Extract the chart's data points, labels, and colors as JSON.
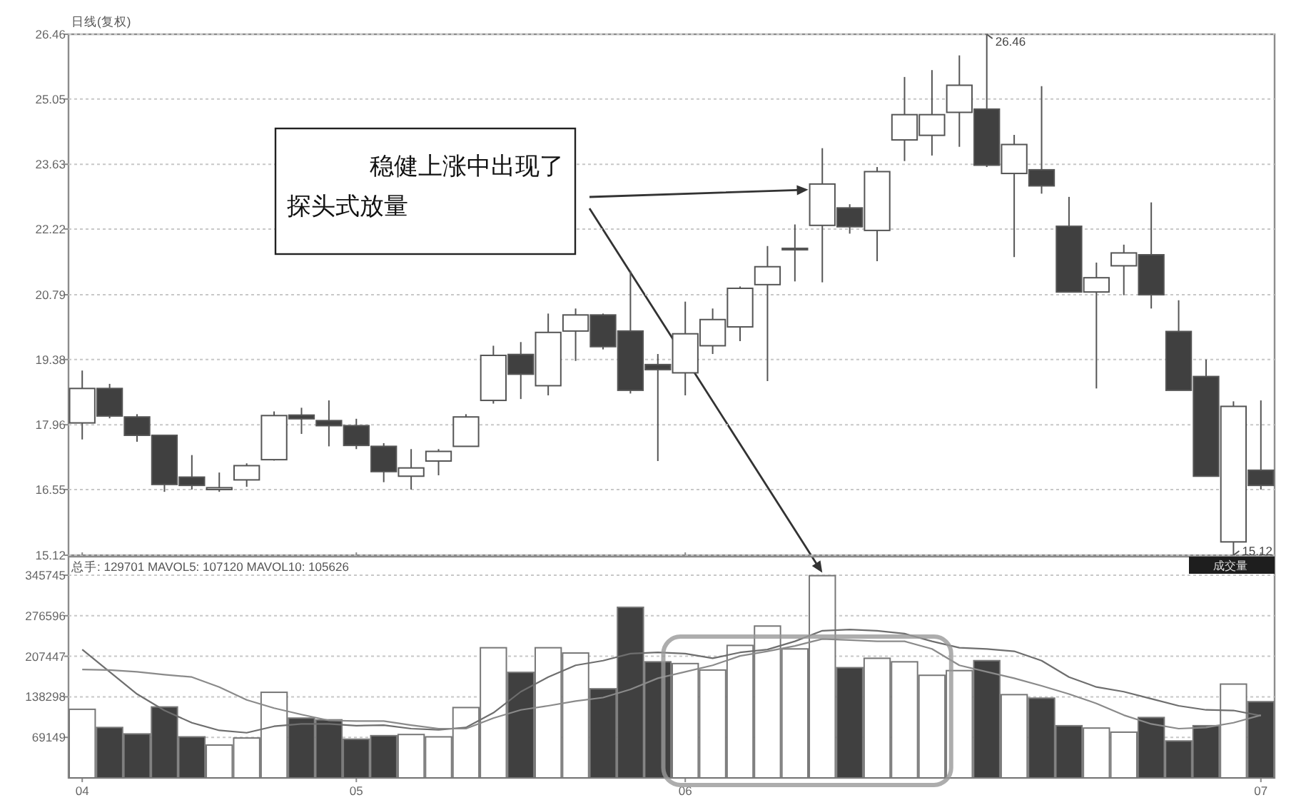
{
  "chart_data": [
    {
      "type": "candlestick",
      "title": "日线(复权)",
      "categories": [
        "04",
        null,
        null,
        null,
        null,
        null,
        null,
        null,
        null,
        null,
        "05",
        null,
        null,
        null,
        null,
        null,
        null,
        null,
        null,
        null,
        null,
        null,
        "06",
        null,
        null,
        null,
        null,
        null,
        null,
        null,
        null,
        null,
        null,
        null,
        null,
        null,
        null,
        null,
        null,
        null,
        null,
        null,
        null,
        "07"
      ],
      "ohlc": [
        [
          18.0,
          19.14,
          17.64,
          18.75
        ],
        [
          18.75,
          18.85,
          18.1,
          18.15
        ],
        [
          18.13,
          18.19,
          17.59,
          17.73
        ],
        [
          17.73,
          17.73,
          16.5,
          16.66
        ],
        [
          16.82,
          17.3,
          16.55,
          16.64
        ],
        [
          16.55,
          16.92,
          16.5,
          16.59
        ],
        [
          16.76,
          17.12,
          16.61,
          17.07
        ],
        [
          17.2,
          18.25,
          17.18,
          18.16
        ],
        [
          18.17,
          18.33,
          17.76,
          18.09
        ],
        [
          18.05,
          18.49,
          17.49,
          17.94
        ],
        [
          17.94,
          18.09,
          17.43,
          17.51
        ],
        [
          17.49,
          17.56,
          16.71,
          16.94
        ],
        [
          16.84,
          17.43,
          16.55,
          17.02
        ],
        [
          17.17,
          17.43,
          16.86,
          17.38
        ],
        [
          17.49,
          18.19,
          17.49,
          18.13
        ],
        [
          18.49,
          19.68,
          18.42,
          19.47
        ],
        [
          19.49,
          19.76,
          18.52,
          19.06
        ],
        [
          18.81,
          20.38,
          18.6,
          19.97
        ],
        [
          20.0,
          20.49,
          19.35,
          20.35
        ],
        [
          20.35,
          20.38,
          19.6,
          19.66
        ],
        [
          20.0,
          21.31,
          18.64,
          18.71
        ],
        [
          19.27,
          19.5,
          17.17,
          19.16
        ],
        [
          19.09,
          20.64,
          18.6,
          19.94
        ],
        [
          19.68,
          20.49,
          19.5,
          20.25
        ],
        [
          20.09,
          20.97,
          19.78,
          20.93
        ],
        [
          21.01,
          21.85,
          18.91,
          21.4
        ],
        [
          21.78,
          22.32,
          21.08,
          21.8
        ],
        [
          22.3,
          23.98,
          21.06,
          23.2
        ],
        [
          22.68,
          22.76,
          22.12,
          22.27
        ],
        [
          22.19,
          23.57,
          21.52,
          23.47
        ],
        [
          24.16,
          25.53,
          23.7,
          24.71
        ],
        [
          24.26,
          25.68,
          23.82,
          24.71
        ],
        [
          24.76,
          26.0,
          24.01,
          25.35
        ],
        [
          24.83,
          26.46,
          23.57,
          23.61
        ],
        [
          23.43,
          24.27,
          21.61,
          24.06
        ],
        [
          23.51,
          25.33,
          22.99,
          23.16
        ],
        [
          22.28,
          22.92,
          20.85,
          20.85
        ],
        [
          20.85,
          21.49,
          18.75,
          21.16
        ],
        [
          21.42,
          21.88,
          20.78,
          21.7
        ],
        [
          21.66,
          22.8,
          20.49,
          20.79
        ],
        [
          19.99,
          20.67,
          18.71,
          18.71
        ],
        [
          19.01,
          19.38,
          16.84,
          16.84
        ],
        [
          15.41,
          18.47,
          15.12,
          18.36
        ],
        [
          16.97,
          18.49,
          16.55,
          16.64
        ]
      ],
      "colors": [
        "#ffffff",
        "#404040",
        "#404040",
        "#404040",
        "#404040",
        "#ffffff",
        "#ffffff",
        "#ffffff",
        "#404040",
        "#404040",
        "#404040",
        "#404040",
        "#ffffff",
        "#ffffff",
        "#ffffff",
        "#ffffff",
        "#404040",
        "#ffffff",
        "#ffffff",
        "#404040",
        "#404040",
        "#404040",
        "#ffffff",
        "#ffffff",
        "#ffffff",
        "#ffffff",
        "#ffffff",
        "#ffffff",
        "#404040",
        "#ffffff",
        "#ffffff",
        "#ffffff",
        "#ffffff",
        "#404040",
        "#ffffff",
        "#404040",
        "#404040",
        "#ffffff",
        "#ffffff",
        "#404040",
        "#404040",
        "#404040",
        "#ffffff",
        "#404040"
      ],
      "ylim": [
        15.12,
        26.46
      ],
      "yticks": [
        26.46,
        25.05,
        23.63,
        22.22,
        20.79,
        19.38,
        17.96,
        16.55,
        15.12
      ],
      "grid": "y",
      "tick_labels": "y",
      "annotations": [
        "26.46",
        "15.12",
        "稳健上涨中出现了探头式放量"
      ]
    },
    {
      "type": "bar",
      "title": "总手: 129701 MAVOL5: 107120 MAVOL10: 105626",
      "categories": [
        "04",
        null,
        null,
        null,
        null,
        null,
        null,
        null,
        null,
        null,
        "05",
        null,
        null,
        null,
        null,
        null,
        null,
        null,
        null,
        null,
        null,
        null,
        "06",
        null,
        null,
        null,
        null,
        null,
        null,
        null,
        null,
        null,
        null,
        null,
        null,
        null,
        null,
        null,
        null,
        null,
        null,
        null,
        null,
        "07"
      ],
      "series": [
        {
          "type": "bar",
          "values": [
            117000,
            86000,
            75000,
            121000,
            70000,
            56000,
            68000,
            146000,
            102000,
            99000,
            66000,
            72000,
            74000,
            70000,
            120000,
            222000,
            180000,
            222000,
            213000,
            152000,
            291000,
            198000,
            195000,
            184000,
            226000,
            259000,
            220000,
            345000,
            188000,
            204000,
            198000,
            175000,
            183000,
            200000,
            142000,
            136000,
            89000,
            85000,
            78000,
            103000,
            63000,
            89000,
            160000,
            130000
          ],
          "colors": [
            "#ffffff",
            "#404040",
            "#404040",
            "#404040",
            "#404040",
            "#ffffff",
            "#ffffff",
            "#ffffff",
            "#404040",
            "#404040",
            "#404040",
            "#404040",
            "#ffffff",
            "#ffffff",
            "#ffffff",
            "#ffffff",
            "#404040",
            "#ffffff",
            "#ffffff",
            "#404040",
            "#404040",
            "#404040",
            "#ffffff",
            "#ffffff",
            "#ffffff",
            "#ffffff",
            "#ffffff",
            "#ffffff",
            "#404040",
            "#ffffff",
            "#ffffff",
            "#ffffff",
            "#ffffff",
            "#404040",
            "#ffffff",
            "#404040",
            "#404040",
            "#ffffff",
            "#ffffff",
            "#404040",
            "#404040",
            "#404040",
            "#ffffff",
            "#404040"
          ]
        },
        {
          "type": "line",
          "color": "#6e6e6e",
          "values": [
            219000,
            181000,
            143000,
            115000,
            94000,
            81000,
            77000,
            88000,
            92000,
            92000,
            89000,
            90000,
            84000,
            82000,
            86000,
            111000,
            147000,
            172000,
            192000,
            200000,
            212000,
            214000,
            212000,
            204000,
            214000,
            219000,
            233000,
            251000,
            253000,
            251000,
            246000,
            233000,
            222000,
            220000,
            216000,
            200000,
            172000,
            155000,
            147000,
            135000,
            123000,
            116000,
            115000,
            106000
          ]
        },
        {
          "type": "line",
          "color": "#8a8a8a",
          "values": [
            185000,
            184000,
            181000,
            176000,
            172000,
            155000,
            133000,
            119000,
            108000,
            98000,
            97000,
            97000,
            90000,
            84000,
            84000,
            102000,
            116000,
            123000,
            131000,
            137000,
            151000,
            170000,
            181000,
            192000,
            208000,
            216000,
            225000,
            237000,
            235000,
            233000,
            233000,
            220000,
            192000,
            181000,
            170000,
            157000,
            143000,
            127000,
            107000,
            92000,
            84000,
            86000,
            94000,
            107000
          ]
        }
      ],
      "ylim": [
        0,
        345745
      ],
      "yticks": [
        69149,
        138298,
        207447,
        276596,
        345745
      ],
      "grid": "y",
      "annotations": [
        "成交量"
      ]
    }
  ]
}
